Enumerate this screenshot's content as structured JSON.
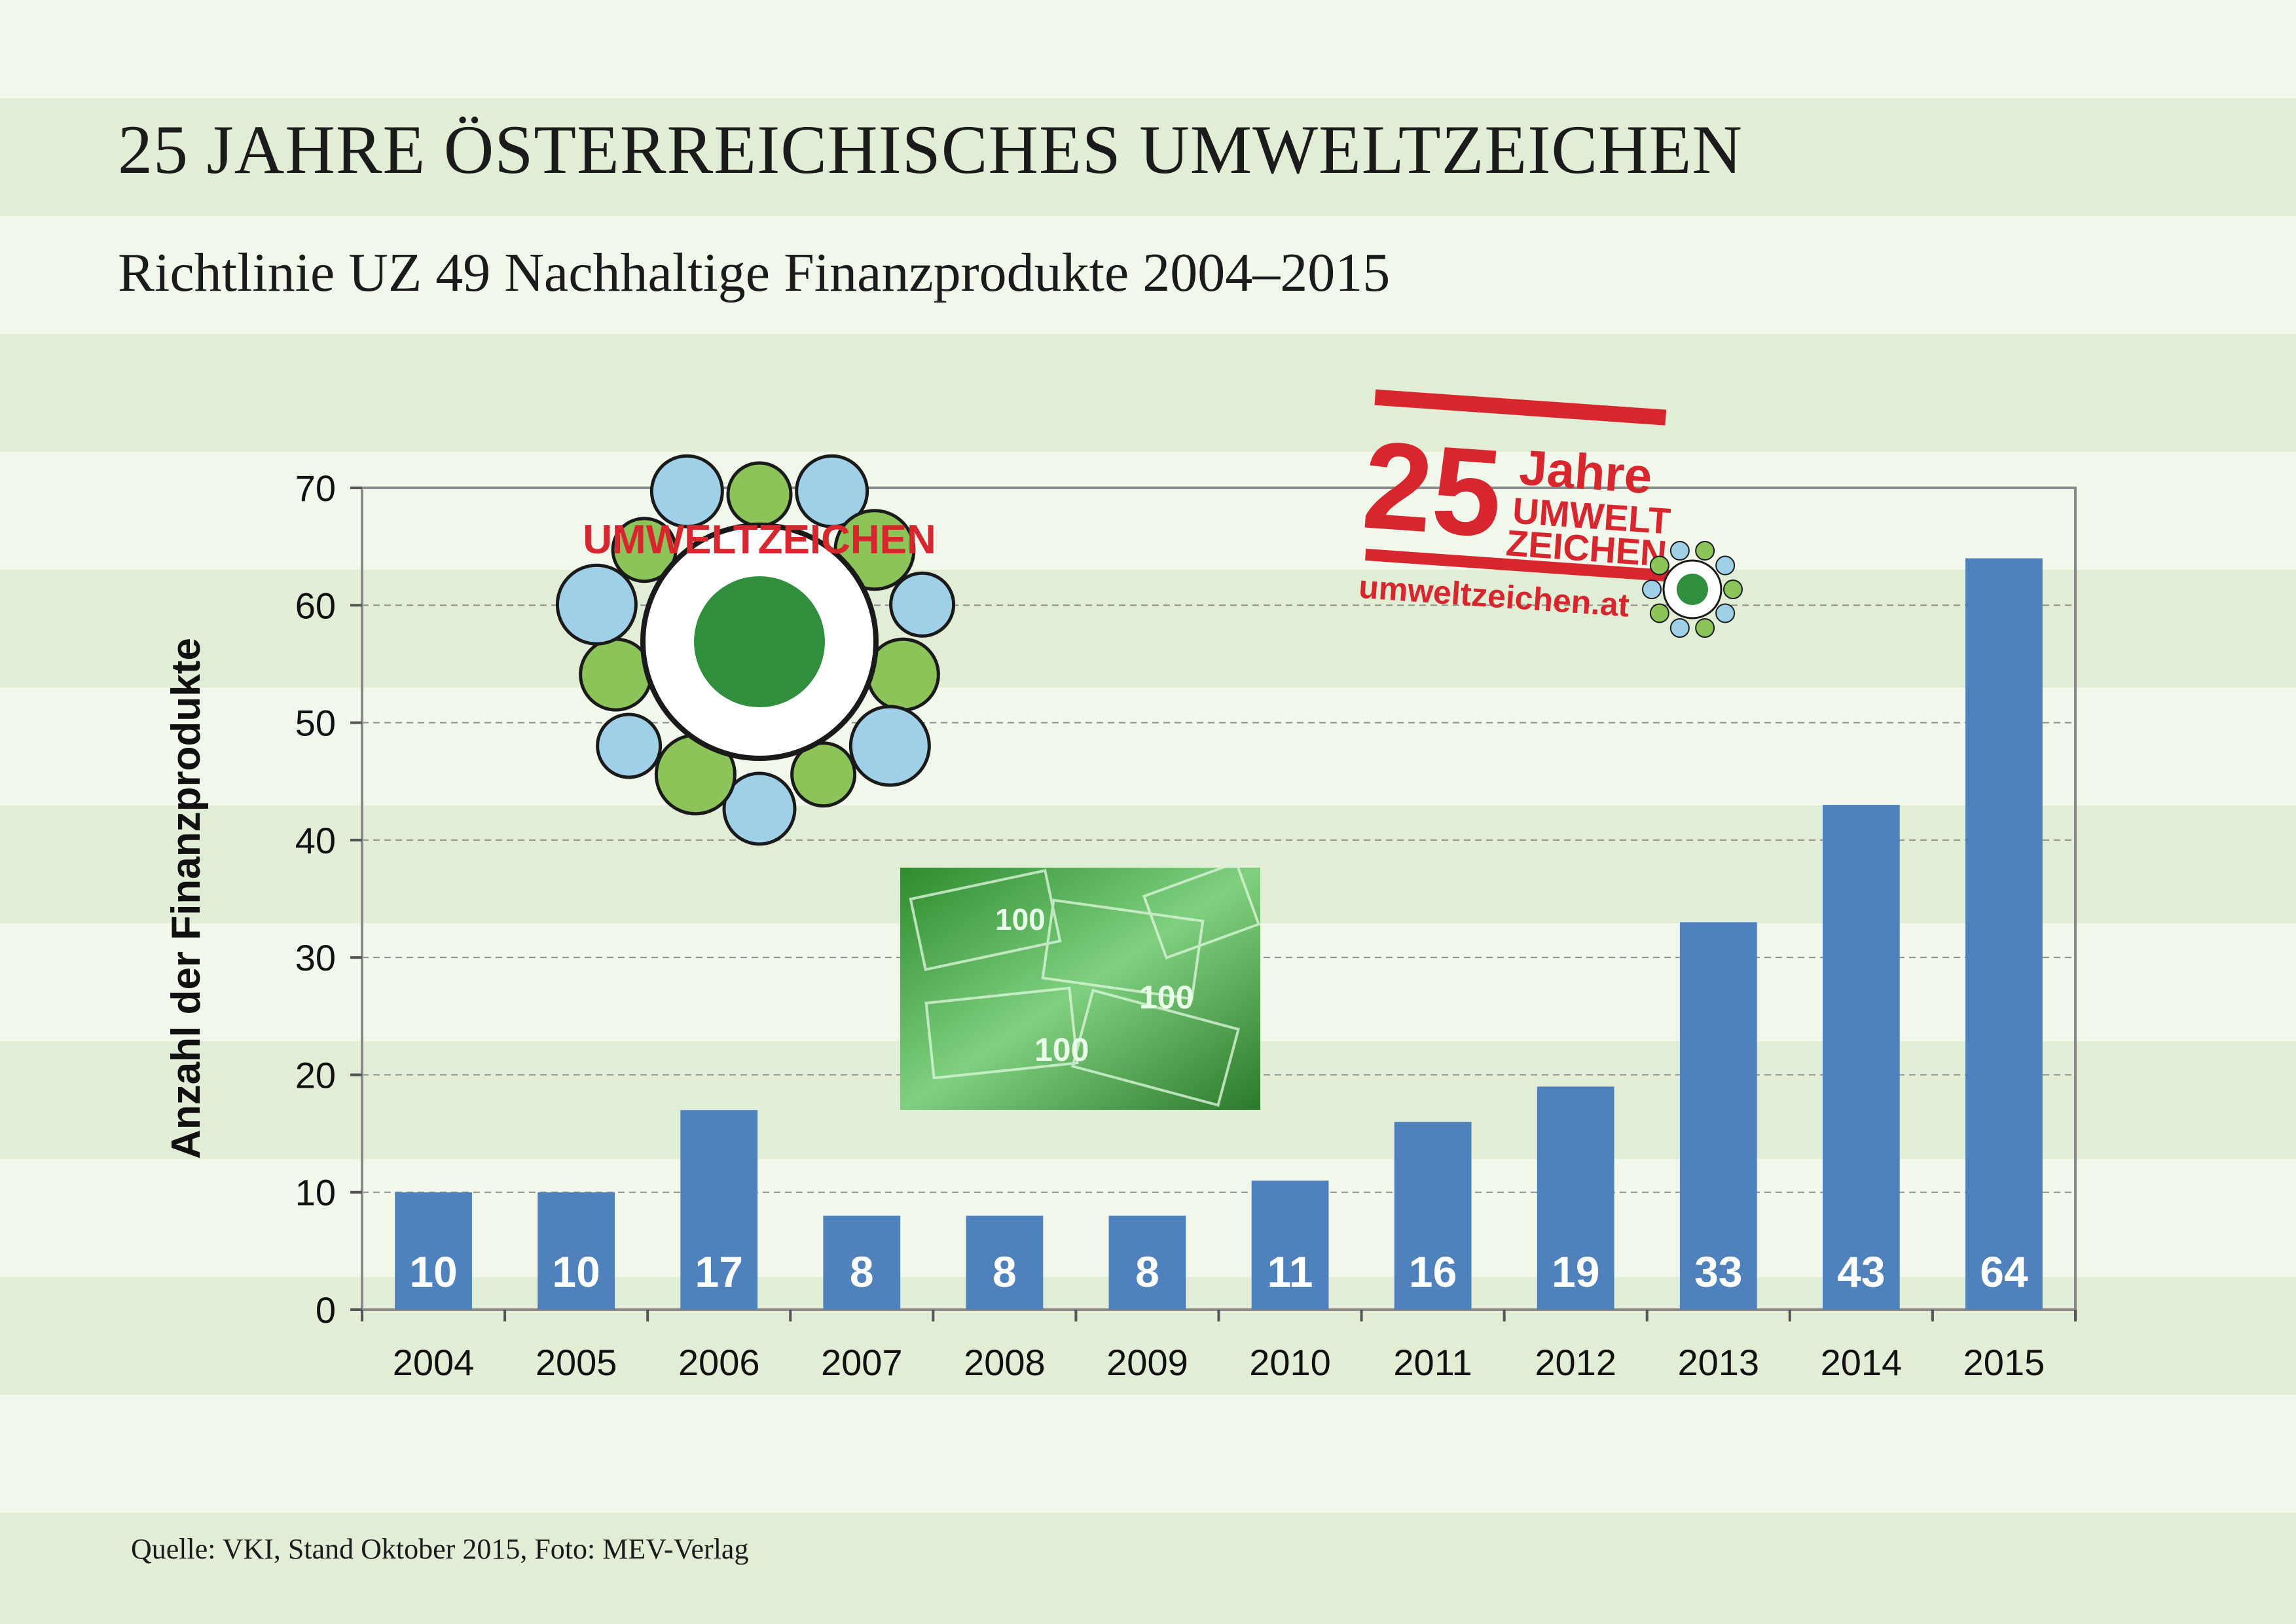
{
  "header": {
    "title": "25 JAHRE ÖSTERREICHISCHES UMWELTZEICHEN",
    "subtitle": "Richtlinie UZ 49 Nachhaltige Finanzprodukte 2004–2015"
  },
  "footer": {
    "source": "Quelle: VKI, Stand Oktober 2015, Foto: MEV-Verlag"
  },
  "badge": {
    "number": "25",
    "word": "Jahre",
    "line1": "UMWELT",
    "line2": "ZEICHEN",
    "url": "umweltzeichen.at"
  },
  "logo": {
    "ring_text": "UMWELTZEICHEN"
  },
  "photo": {
    "note_value": "100"
  },
  "colors": {
    "bar": "#4f81bd",
    "stripe": "#e1edd5",
    "background": "#f2f7ec",
    "badge_red": "#d8262e",
    "money_green": "#3aa13a"
  },
  "chart_data": {
    "type": "bar",
    "title": "Richtlinie UZ 49 Nachhaltige Finanzprodukte 2004–2015",
    "xlabel": "",
    "ylabel": "Anzahl der Finanzprodukte",
    "categories": [
      "2004",
      "2005",
      "2006",
      "2007",
      "2008",
      "2009",
      "2010",
      "2011",
      "2012",
      "2013",
      "2014",
      "2015"
    ],
    "values": [
      10,
      10,
      17,
      8,
      8,
      8,
      11,
      16,
      19,
      33,
      43,
      64
    ],
    "value_labels": [
      "10",
      "10",
      "17",
      "8",
      "8",
      "8",
      "11",
      "16",
      "19",
      "33",
      "43",
      "64"
    ],
    "ylim": [
      0,
      70
    ],
    "yticks": [
      "0",
      "10",
      "20",
      "30",
      "40",
      "50",
      "60",
      "70"
    ],
    "grid": true,
    "legend": "none"
  }
}
